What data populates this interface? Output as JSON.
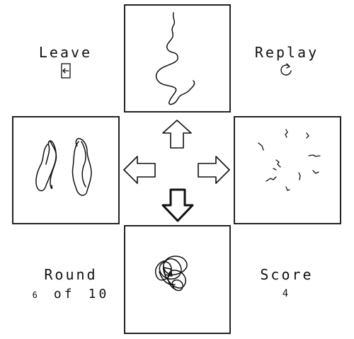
{
  "leave": {
    "label": "Leave",
    "icon": "exit-door-icon"
  },
  "replay": {
    "label": "Replay",
    "icon": "replay-icon"
  },
  "round": {
    "title": "Round",
    "current": "6",
    "of": "of",
    "total": "10"
  },
  "score": {
    "title": "Score",
    "value": "4"
  },
  "arrows": {
    "up": "arrow-up-icon",
    "left": "arrow-left-icon",
    "right": "arrow-right-icon",
    "down": "arrow-down-icon",
    "selected": "down"
  },
  "cards": {
    "top": "wavy-line",
    "left": "two-wavy-strands",
    "right": "scattered-squiggles",
    "bottom": "tangled-scribble"
  },
  "colors": {
    "ink": "#111111",
    "background": "#ffffff"
  }
}
